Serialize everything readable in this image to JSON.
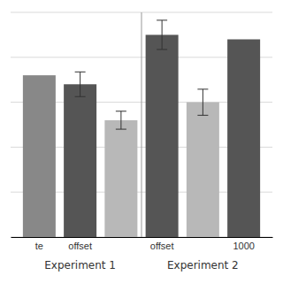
{
  "chart_data": {
    "type": "bar",
    "categories": [
      "te",
      "offset",
      null,
      "offset",
      null,
      "1000"
    ],
    "values": [
      0.72,
      0.68,
      0.52,
      0.9,
      0.6,
      0.88
    ],
    "errors": [
      null,
      0.055,
      0.04,
      0.065,
      0.058,
      null
    ],
    "colors": [
      "#888888",
      "#555555",
      "#b8b8b8",
      "#555555",
      "#b8b8b8",
      "#555555"
    ],
    "annotations": [
      "Experiment 1",
      "Experiment 2"
    ],
    "ylim": [
      0,
      1.0
    ],
    "yticks": [
      0.0,
      0.2,
      0.4,
      0.6,
      0.8,
      1.0
    ],
    "grid": true,
    "tick_labels": "x"
  }
}
